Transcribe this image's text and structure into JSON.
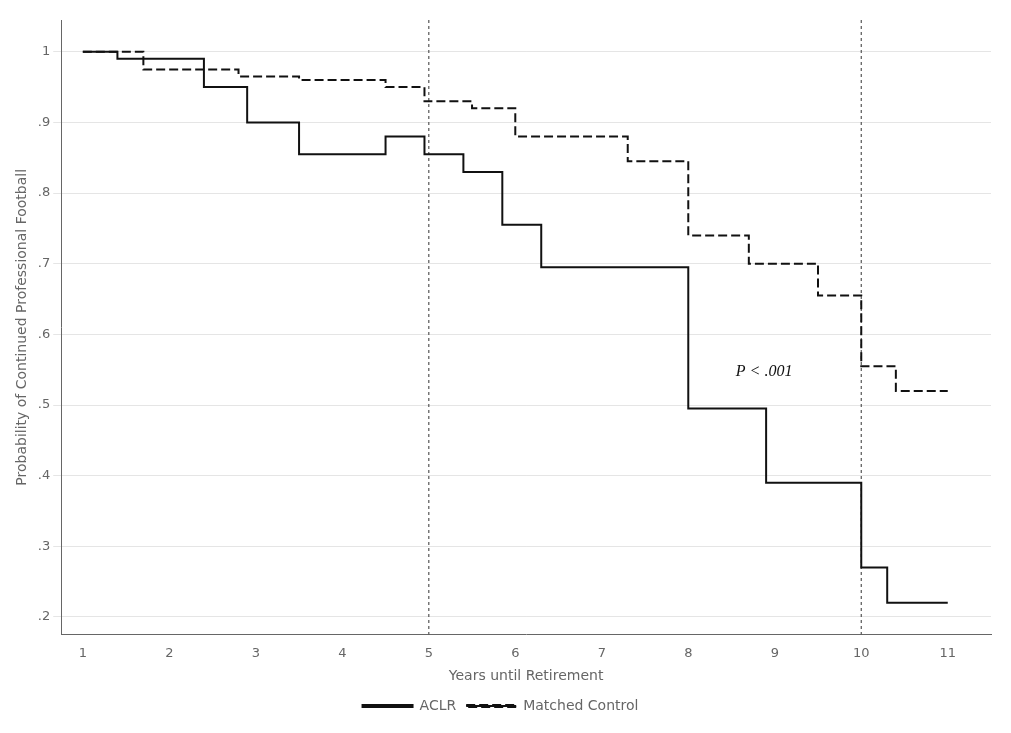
{
  "chart_data": {
    "type": "line",
    "xlabel": "Years until Retirement",
    "ylabel": "Probability of Continued Professional Football",
    "series": [
      {
        "name": "ACLR",
        "color": "#111111",
        "line_style": "solid",
        "x": [
          1,
          1.4,
          1.4,
          2.4,
          2.4,
          2.9,
          2.9,
          3.5,
          3.5,
          4.5,
          4.5,
          4.95,
          4.95,
          5.4,
          5.4,
          5.85,
          5.85,
          6.3,
          6.3,
          8.0,
          8.0,
          8.9,
          8.9,
          10.0,
          10.0,
          10.3,
          10.3,
          11.0
        ],
        "values": [
          1.0,
          1.0,
          0.99,
          0.99,
          0.95,
          0.95,
          0.9,
          0.9,
          0.855,
          0.855,
          0.88,
          0.88,
          0.855,
          0.855,
          0.83,
          0.83,
          0.755,
          0.755,
          0.695,
          0.695,
          0.495,
          0.495,
          0.39,
          0.39,
          0.27,
          0.27,
          0.22,
          0.22
        ]
      },
      {
        "name": "Matched Control",
        "color": "#111111",
        "line_style": "dashed",
        "x": [
          1,
          1.7,
          1.7,
          2.8,
          2.8,
          3.5,
          3.5,
          4.5,
          4.5,
          4.95,
          4.95,
          5.5,
          5.5,
          6.0,
          6.0,
          7.3,
          7.3,
          8.0,
          8.0,
          8.7,
          8.7,
          9.5,
          9.5,
          10.0,
          10.0,
          10.4,
          10.4,
          11.0
        ],
        "values": [
          1.0,
          1.0,
          0.975,
          0.975,
          0.965,
          0.965,
          0.96,
          0.96,
          0.95,
          0.95,
          0.93,
          0.93,
          0.92,
          0.92,
          0.88,
          0.88,
          0.845,
          0.845,
          0.74,
          0.74,
          0.7,
          0.7,
          0.655,
          0.655,
          0.555,
          0.555,
          0.52,
          0.52
        ]
      }
    ],
    "vlines": [
      5,
      10
    ],
    "annotations": [
      {
        "text": "P < .001",
        "x": 8.55,
        "y": 0.535
      }
    ],
    "xlim": [
      0.75,
      11.5
    ],
    "ylim": [
      0.175,
      1.045
    ],
    "xticks": [
      1,
      2,
      3,
      4,
      5,
      6,
      7,
      8,
      9,
      10,
      11
    ],
    "yticks": [
      {
        "value": 0.2,
        "label": ".2"
      },
      {
        "value": 0.3,
        "label": ".3"
      },
      {
        "value": 0.4,
        "label": ".4"
      },
      {
        "value": 0.5,
        "label": ".5"
      },
      {
        "value": 0.6,
        "label": ".6"
      },
      {
        "value": 0.7,
        "label": ".7"
      },
      {
        "value": 0.8,
        "label": ".8"
      },
      {
        "value": 0.9,
        "label": ".9"
      },
      1
    ],
    "grid": true,
    "legend": "bottom"
  }
}
